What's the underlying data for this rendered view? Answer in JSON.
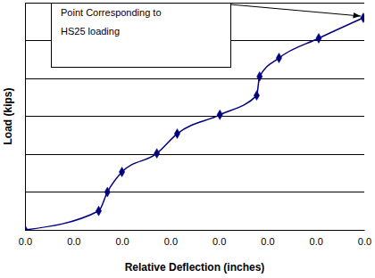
{
  "chart_data": {
    "type": "line",
    "xlabel": "Relative Deflection (inches)",
    "ylabel": "Load (kips)",
    "x": [
      0,
      0.0076,
      0.0085,
      0.01,
      0.0136,
      0.0157,
      0.0201,
      0.0239,
      0.0242,
      0.0262,
      0.0303,
      0.0349
    ],
    "values": [
      0,
      5,
      10,
      15.3,
      20.2,
      25.4,
      30.4,
      35.5,
      40.5,
      45.4,
      50.6,
      56
    ],
    "color": "#000080",
    "marker": "diamond",
    "line_style": "solid",
    "xlim": [
      0,
      0.035
    ],
    "xticks": [
      {
        "value": 0,
        "label": "0.0"
      },
      {
        "value": 0.005,
        "label": "0.0"
      },
      {
        "value": 0.01,
        "label": "0.0"
      },
      {
        "value": 0.015,
        "label": "0.0"
      },
      {
        "value": 0.02,
        "label": "0.0"
      },
      {
        "value": 0.025,
        "label": "0.0"
      },
      {
        "value": 0.03,
        "label": "0.0"
      },
      {
        "value": 0.035,
        "label": "0.0"
      }
    ],
    "ylim": [
      0,
      60
    ],
    "yticks": [
      0,
      10,
      20,
      30,
      40,
      50,
      60
    ],
    "grid": true,
    "tick_labels": "x",
    "annotations": [
      {
        "text": "Point Corresponding to HS25 loading",
        "x": 0.0349,
        "y": 56
      }
    ]
  }
}
